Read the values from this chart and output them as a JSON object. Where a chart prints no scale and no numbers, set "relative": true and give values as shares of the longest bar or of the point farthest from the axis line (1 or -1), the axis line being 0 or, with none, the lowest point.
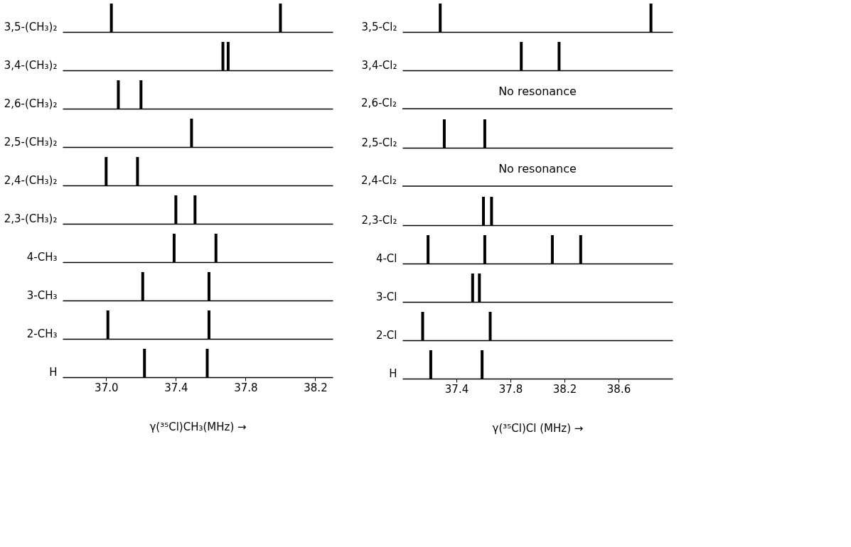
{
  "chart_data": [
    {
      "type": "bar",
      "relative": true,
      "ylabel": "3,5-(CH₃)₂",
      "x": [
        37.03,
        38.0
      ],
      "series": [
        {
          "color": "#000000",
          "values": [
            1,
            1
          ]
        }
      ],
      "xlim": [
        36.75,
        38.3
      ],
      "tick_labels": false
    },
    {
      "type": "bar",
      "relative": true,
      "ylabel": "3,4-(CH₃)₂",
      "x": [
        37.67,
        37.7
      ],
      "series": [
        {
          "color": "#000000",
          "values": [
            1,
            1
          ]
        }
      ],
      "xlim": [
        36.75,
        38.3
      ],
      "tick_labels": false
    },
    {
      "type": "bar",
      "relative": true,
      "ylabel": "2,6-(CH₃)₂",
      "x": [
        37.07,
        37.2
      ],
      "series": [
        {
          "color": "#000000",
          "values": [
            1,
            1
          ]
        }
      ],
      "xlim": [
        36.75,
        38.3
      ],
      "tick_labels": false
    },
    {
      "type": "bar",
      "relative": true,
      "ylabel": "2,5-(CH₃)₂",
      "x": [
        37.49
      ],
      "series": [
        {
          "color": "#000000",
          "values": [
            1
          ]
        }
      ],
      "xlim": [
        36.75,
        38.3
      ],
      "tick_labels": false
    },
    {
      "type": "bar",
      "relative": true,
      "ylabel": "2,4-(CH₃)₂",
      "x": [
        37.0,
        37.18
      ],
      "series": [
        {
          "color": "#000000",
          "values": [
            1,
            1
          ]
        }
      ],
      "xlim": [
        36.75,
        38.3
      ],
      "tick_labels": false
    },
    {
      "type": "bar",
      "relative": true,
      "ylabel": "2,3-(CH₃)₂",
      "x": [
        37.4,
        37.51
      ],
      "series": [
        {
          "color": "#000000",
          "values": [
            1,
            1
          ]
        }
      ],
      "xlim": [
        36.75,
        38.3
      ],
      "tick_labels": false
    },
    {
      "type": "bar",
      "relative": true,
      "ylabel": "4-CH₃",
      "x": [
        37.39,
        37.63
      ],
      "series": [
        {
          "color": "#000000",
          "values": [
            1,
            1
          ]
        }
      ],
      "xlim": [
        36.75,
        38.3
      ],
      "tick_labels": false
    },
    {
      "type": "bar",
      "relative": true,
      "ylabel": "3-CH₃",
      "x": [
        37.21,
        37.59
      ],
      "series": [
        {
          "color": "#000000",
          "values": [
            1,
            1
          ]
        }
      ],
      "xlim": [
        36.75,
        38.3
      ],
      "tick_labels": false
    },
    {
      "type": "bar",
      "relative": true,
      "ylabel": "2-CH₃",
      "x": [
        37.01,
        37.59
      ],
      "series": [
        {
          "color": "#000000",
          "values": [
            1,
            1
          ]
        }
      ],
      "xlim": [
        36.75,
        38.3
      ],
      "tick_labels": false
    },
    {
      "type": "bar",
      "relative": true,
      "ylabel": "H",
      "x": [
        37.22,
        37.58
      ],
      "series": [
        {
          "color": "#000000",
          "values": [
            1,
            1
          ]
        }
      ],
      "xlim": [
        36.75,
        38.3
      ],
      "xticks": [
        {
          "value": 37.0,
          "label": "37.0"
        },
        37.4,
        37.8,
        38.2
      ],
      "xlabel": "γ(³⁵Cl)CH₃(MHz) →",
      "tick_labels": "x"
    },
    {
      "type": "bar",
      "relative": true,
      "ylabel": "3,5-Cl₂",
      "x": [
        37.28,
        38.84
      ],
      "series": [
        {
          "color": "#000000",
          "values": [
            1,
            1
          ]
        }
      ],
      "xlim": [
        37.0,
        39.0
      ],
      "tick_labels": false
    },
    {
      "type": "bar",
      "relative": true,
      "ylabel": "3,4-Cl₂",
      "x": [
        37.88,
        38.16
      ],
      "series": [
        {
          "color": "#000000",
          "values": [
            1,
            1
          ]
        }
      ],
      "xlim": [
        37.0,
        39.0
      ],
      "tick_labels": false
    },
    {
      "type": "other",
      "ylabel": "2,6-Cl₂",
      "annotations": [
        "No resonance"
      ]
    },
    {
      "type": "bar",
      "relative": true,
      "ylabel": "2,5-Cl₂",
      "x": [
        37.31,
        37.61
      ],
      "series": [
        {
          "color": "#000000",
          "values": [
            1,
            1
          ]
        }
      ],
      "xlim": [
        37.0,
        39.0
      ],
      "tick_labels": false
    },
    {
      "type": "other",
      "ylabel": "2,4-Cl₂",
      "annotations": [
        "No resonance"
      ]
    },
    {
      "type": "bar",
      "relative": true,
      "ylabel": "2,3-Cl₂",
      "x": [
        37.6,
        37.66
      ],
      "series": [
        {
          "color": "#000000",
          "values": [
            1,
            1
          ]
        }
      ],
      "xlim": [
        37.0,
        39.0
      ],
      "tick_labels": false
    },
    {
      "type": "bar",
      "relative": true,
      "ylabel": "4-Cl",
      "x": [
        37.19,
        37.61,
        38.11,
        38.32
      ],
      "series": [
        {
          "color": "#000000",
          "values": [
            1,
            1,
            1,
            1
          ]
        }
      ],
      "xlim": [
        37.0,
        39.0
      ],
      "tick_labels": false
    },
    {
      "type": "bar",
      "relative": true,
      "ylabel": "3-Cl",
      "x": [
        37.52,
        37.57
      ],
      "series": [
        {
          "color": "#000000",
          "values": [
            1,
            1
          ]
        }
      ],
      "xlim": [
        37.0,
        39.0
      ],
      "tick_labels": false
    },
    {
      "type": "bar",
      "relative": true,
      "ylabel": "2-Cl",
      "x": [
        37.15,
        37.65
      ],
      "series": [
        {
          "color": "#000000",
          "values": [
            1,
            1
          ]
        }
      ],
      "xlim": [
        37.0,
        39.0
      ],
      "tick_labels": false
    },
    {
      "type": "bar",
      "relative": true,
      "ylabel": "H",
      "x": [
        37.21,
        37.59
      ],
      "series": [
        {
          "color": "#000000",
          "values": [
            1,
            1
          ]
        }
      ],
      "xlim": [
        37.0,
        39.0
      ],
      "xticks": [
        37.4,
        37.8,
        38.2,
        38.6
      ],
      "xlabel": "γ(³⁵Cl)Cl (MHz) →",
      "tick_labels": "x"
    }
  ]
}
